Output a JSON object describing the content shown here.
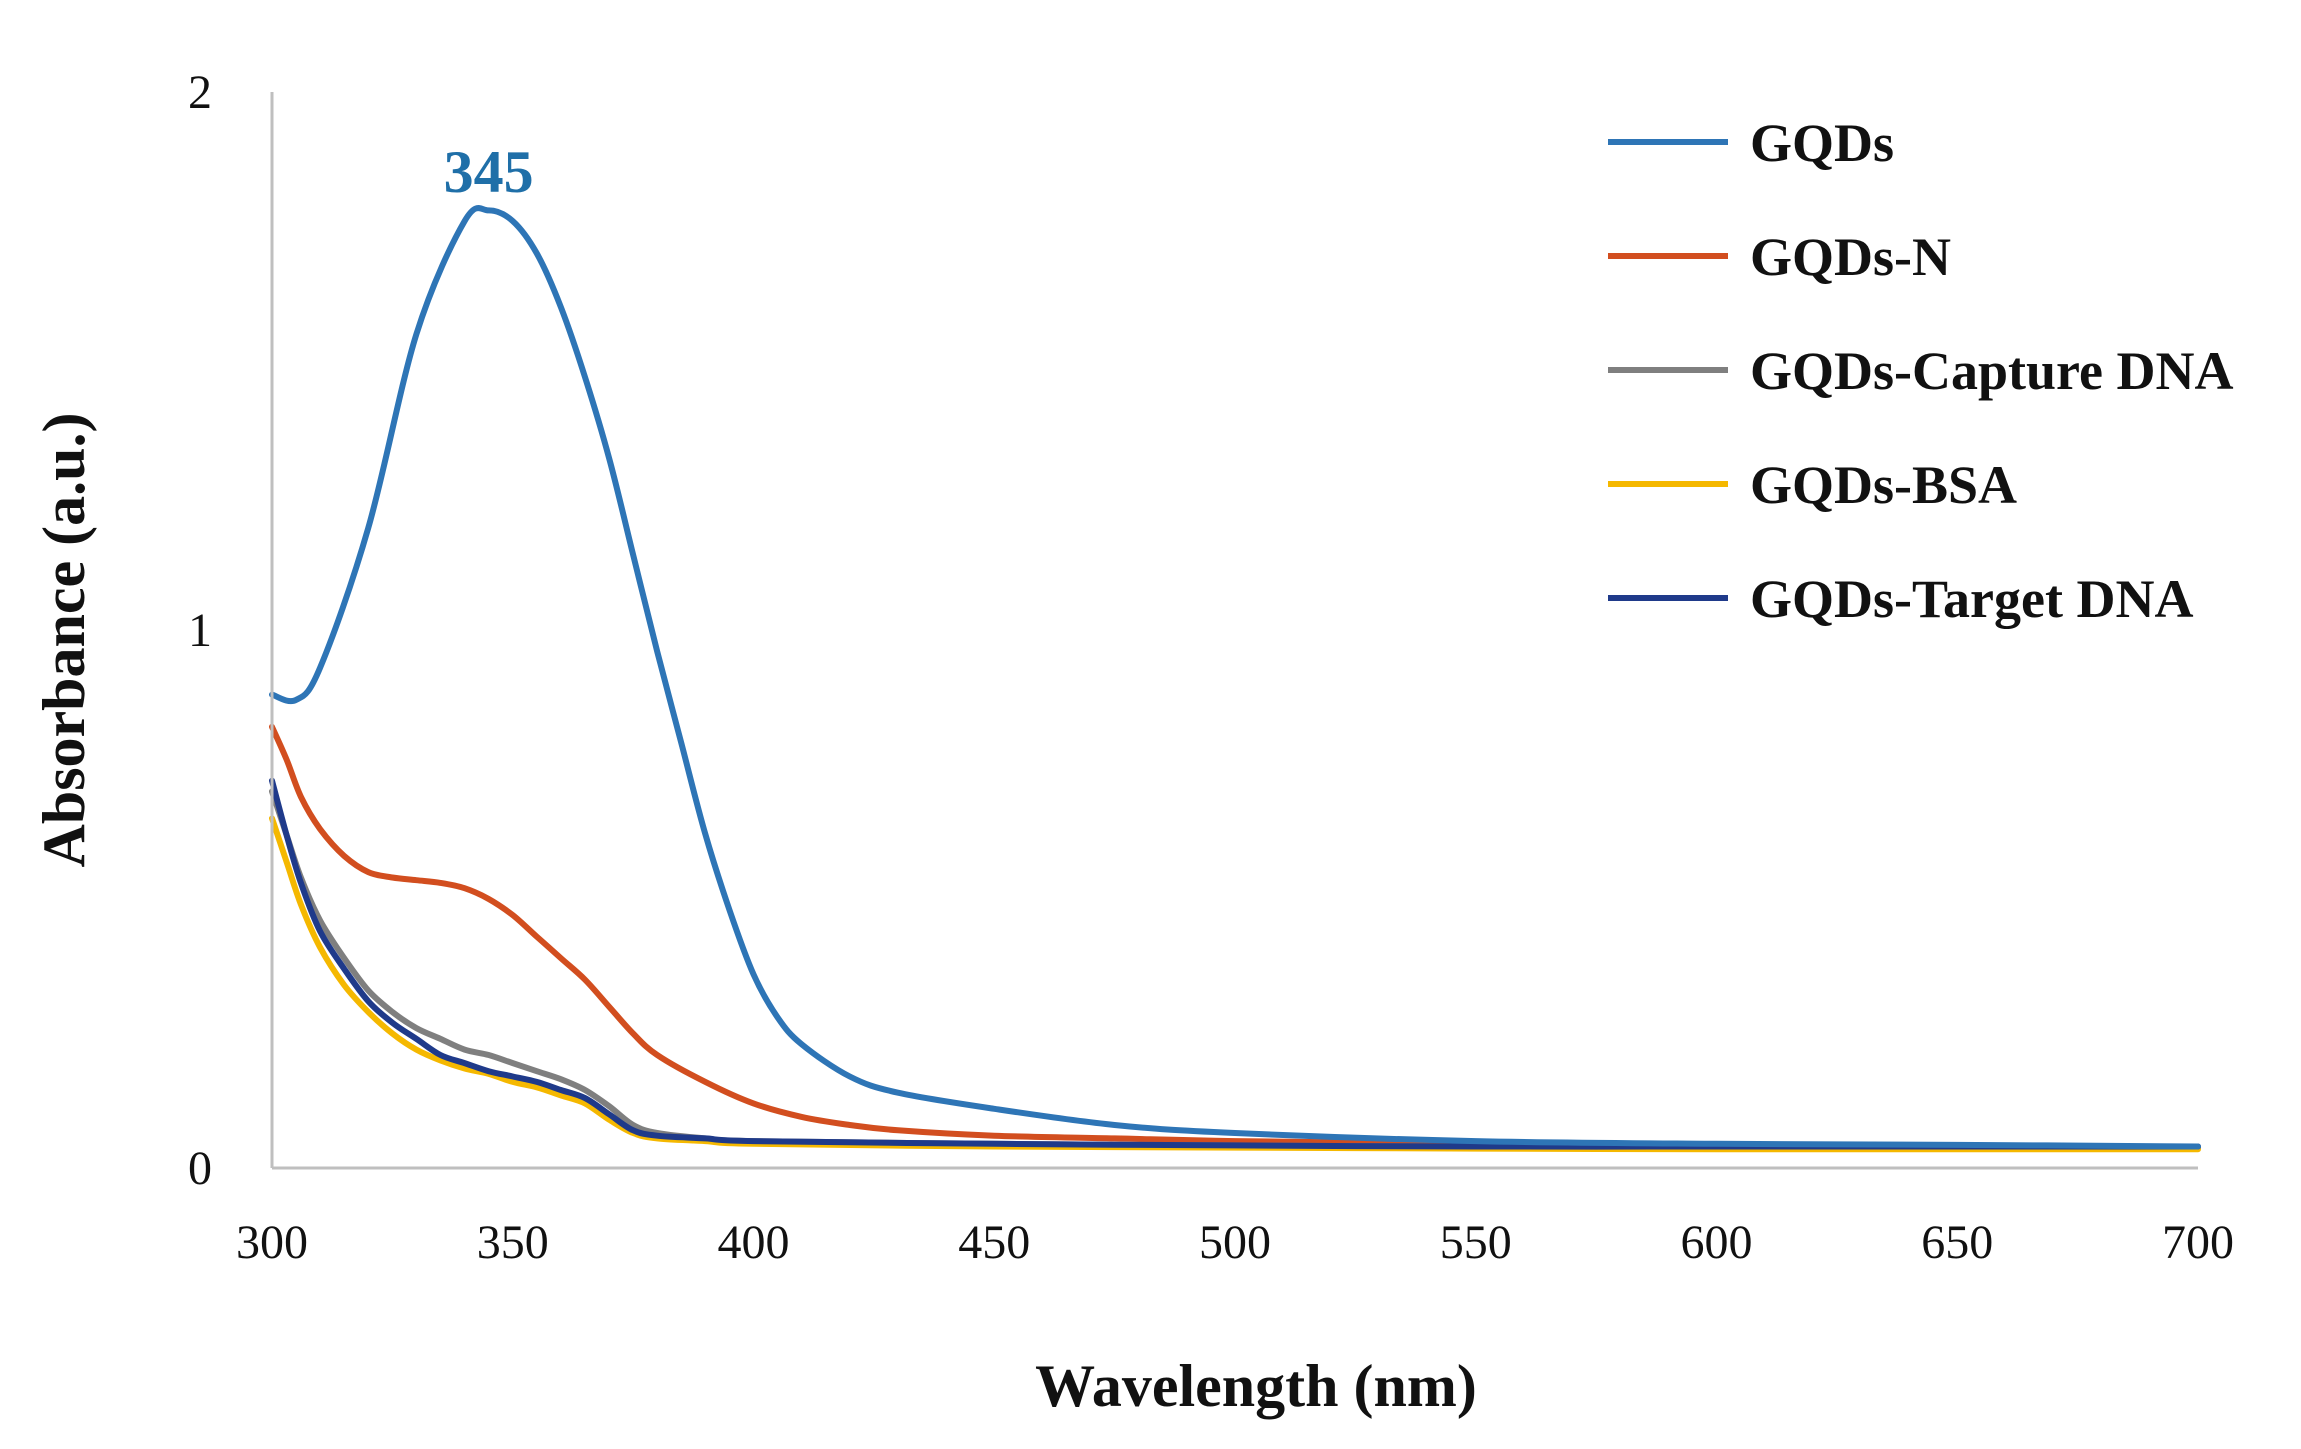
{
  "chart_data": {
    "type": "line",
    "title": "",
    "xlabel": "Wavelength (nm)",
    "ylabel": "Absorbance (a.u.)",
    "xlim": [
      300,
      700
    ],
    "ylim": [
      0,
      2
    ],
    "xticks": [
      300,
      350,
      400,
      450,
      500,
      550,
      600,
      650,
      700
    ],
    "yticks": [
      0,
      1,
      2
    ],
    "grid": false,
    "legend_position": "top-right",
    "annotations": [
      {
        "text": "345",
        "x": 345,
        "y": 1.87,
        "color": "#1f6fa8"
      }
    ],
    "series": [
      {
        "name": "GQDs",
        "color": "#2e75b6",
        "x": [
          300,
          305,
          310,
          320,
          330,
          340,
          345,
          350,
          355,
          360,
          365,
          370,
          375,
          380,
          385,
          390,
          395,
          400,
          405,
          410,
          420,
          430,
          450,
          475,
          500,
          550,
          600,
          650,
          700
        ],
        "y": [
          0.88,
          0.87,
          0.93,
          1.19,
          1.55,
          1.76,
          1.78,
          1.76,
          1.7,
          1.6,
          1.47,
          1.32,
          1.14,
          0.96,
          0.79,
          0.62,
          0.48,
          0.36,
          0.28,
          0.23,
          0.17,
          0.14,
          0.11,
          0.08,
          0.065,
          0.05,
          0.045,
          0.043,
          0.04
        ]
      },
      {
        "name": "GQDs-N",
        "color": "#d24e1f",
        "x": [
          300,
          303,
          306,
          310,
          315,
          320,
          325,
          330,
          335,
          340,
          345,
          350,
          355,
          360,
          365,
          370,
          375,
          380,
          390,
          400,
          410,
          420,
          430,
          450,
          475,
          500,
          550,
          600,
          650,
          700
        ],
        "y": [
          0.82,
          0.76,
          0.69,
          0.63,
          0.58,
          0.55,
          0.54,
          0.535,
          0.53,
          0.52,
          0.5,
          0.47,
          0.43,
          0.39,
          0.35,
          0.3,
          0.25,
          0.21,
          0.16,
          0.12,
          0.095,
          0.08,
          0.07,
          0.06,
          0.055,
          0.05,
          0.045,
          0.042,
          0.04,
          0.038
        ]
      },
      {
        "name": "GQDs-Capture DNA",
        "color": "#7f7f7f",
        "x": [
          300,
          303,
          306,
          310,
          315,
          320,
          325,
          330,
          335,
          340,
          345,
          350,
          355,
          360,
          365,
          370,
          375,
          380,
          390,
          400,
          450,
          500,
          550,
          600,
          650,
          700
        ],
        "y": [
          0.7,
          0.62,
          0.54,
          0.46,
          0.39,
          0.33,
          0.29,
          0.26,
          0.24,
          0.22,
          0.21,
          0.195,
          0.18,
          0.165,
          0.145,
          0.115,
          0.08,
          0.065,
          0.055,
          0.05,
          0.045,
          0.042,
          0.04,
          0.04,
          0.038,
          0.038
        ]
      },
      {
        "name": "GQDs-BSA",
        "color": "#f5b800",
        "x": [
          300,
          303,
          306,
          310,
          315,
          320,
          325,
          330,
          335,
          340,
          345,
          350,
          355,
          360,
          365,
          370,
          375,
          380,
          390,
          400,
          450,
          500,
          550,
          600,
          650,
          700
        ],
        "y": [
          0.65,
          0.57,
          0.49,
          0.41,
          0.34,
          0.29,
          0.25,
          0.22,
          0.2,
          0.185,
          0.175,
          0.16,
          0.15,
          0.135,
          0.12,
          0.09,
          0.065,
          0.055,
          0.05,
          0.045,
          0.04,
          0.038,
          0.036,
          0.035,
          0.035,
          0.035
        ]
      },
      {
        "name": "GQDs-Target DNA",
        "color": "#1f3a8a",
        "x": [
          300,
          303,
          306,
          310,
          315,
          320,
          325,
          330,
          335,
          340,
          345,
          350,
          355,
          360,
          365,
          370,
          375,
          380,
          390,
          400,
          450,
          500,
          550,
          600,
          650,
          700
        ],
        "y": [
          0.72,
          0.62,
          0.53,
          0.44,
          0.37,
          0.31,
          0.27,
          0.24,
          0.21,
          0.195,
          0.18,
          0.17,
          0.16,
          0.145,
          0.13,
          0.1,
          0.07,
          0.06,
          0.055,
          0.05,
          0.045,
          0.042,
          0.04,
          0.04,
          0.04,
          0.04
        ]
      }
    ]
  }
}
